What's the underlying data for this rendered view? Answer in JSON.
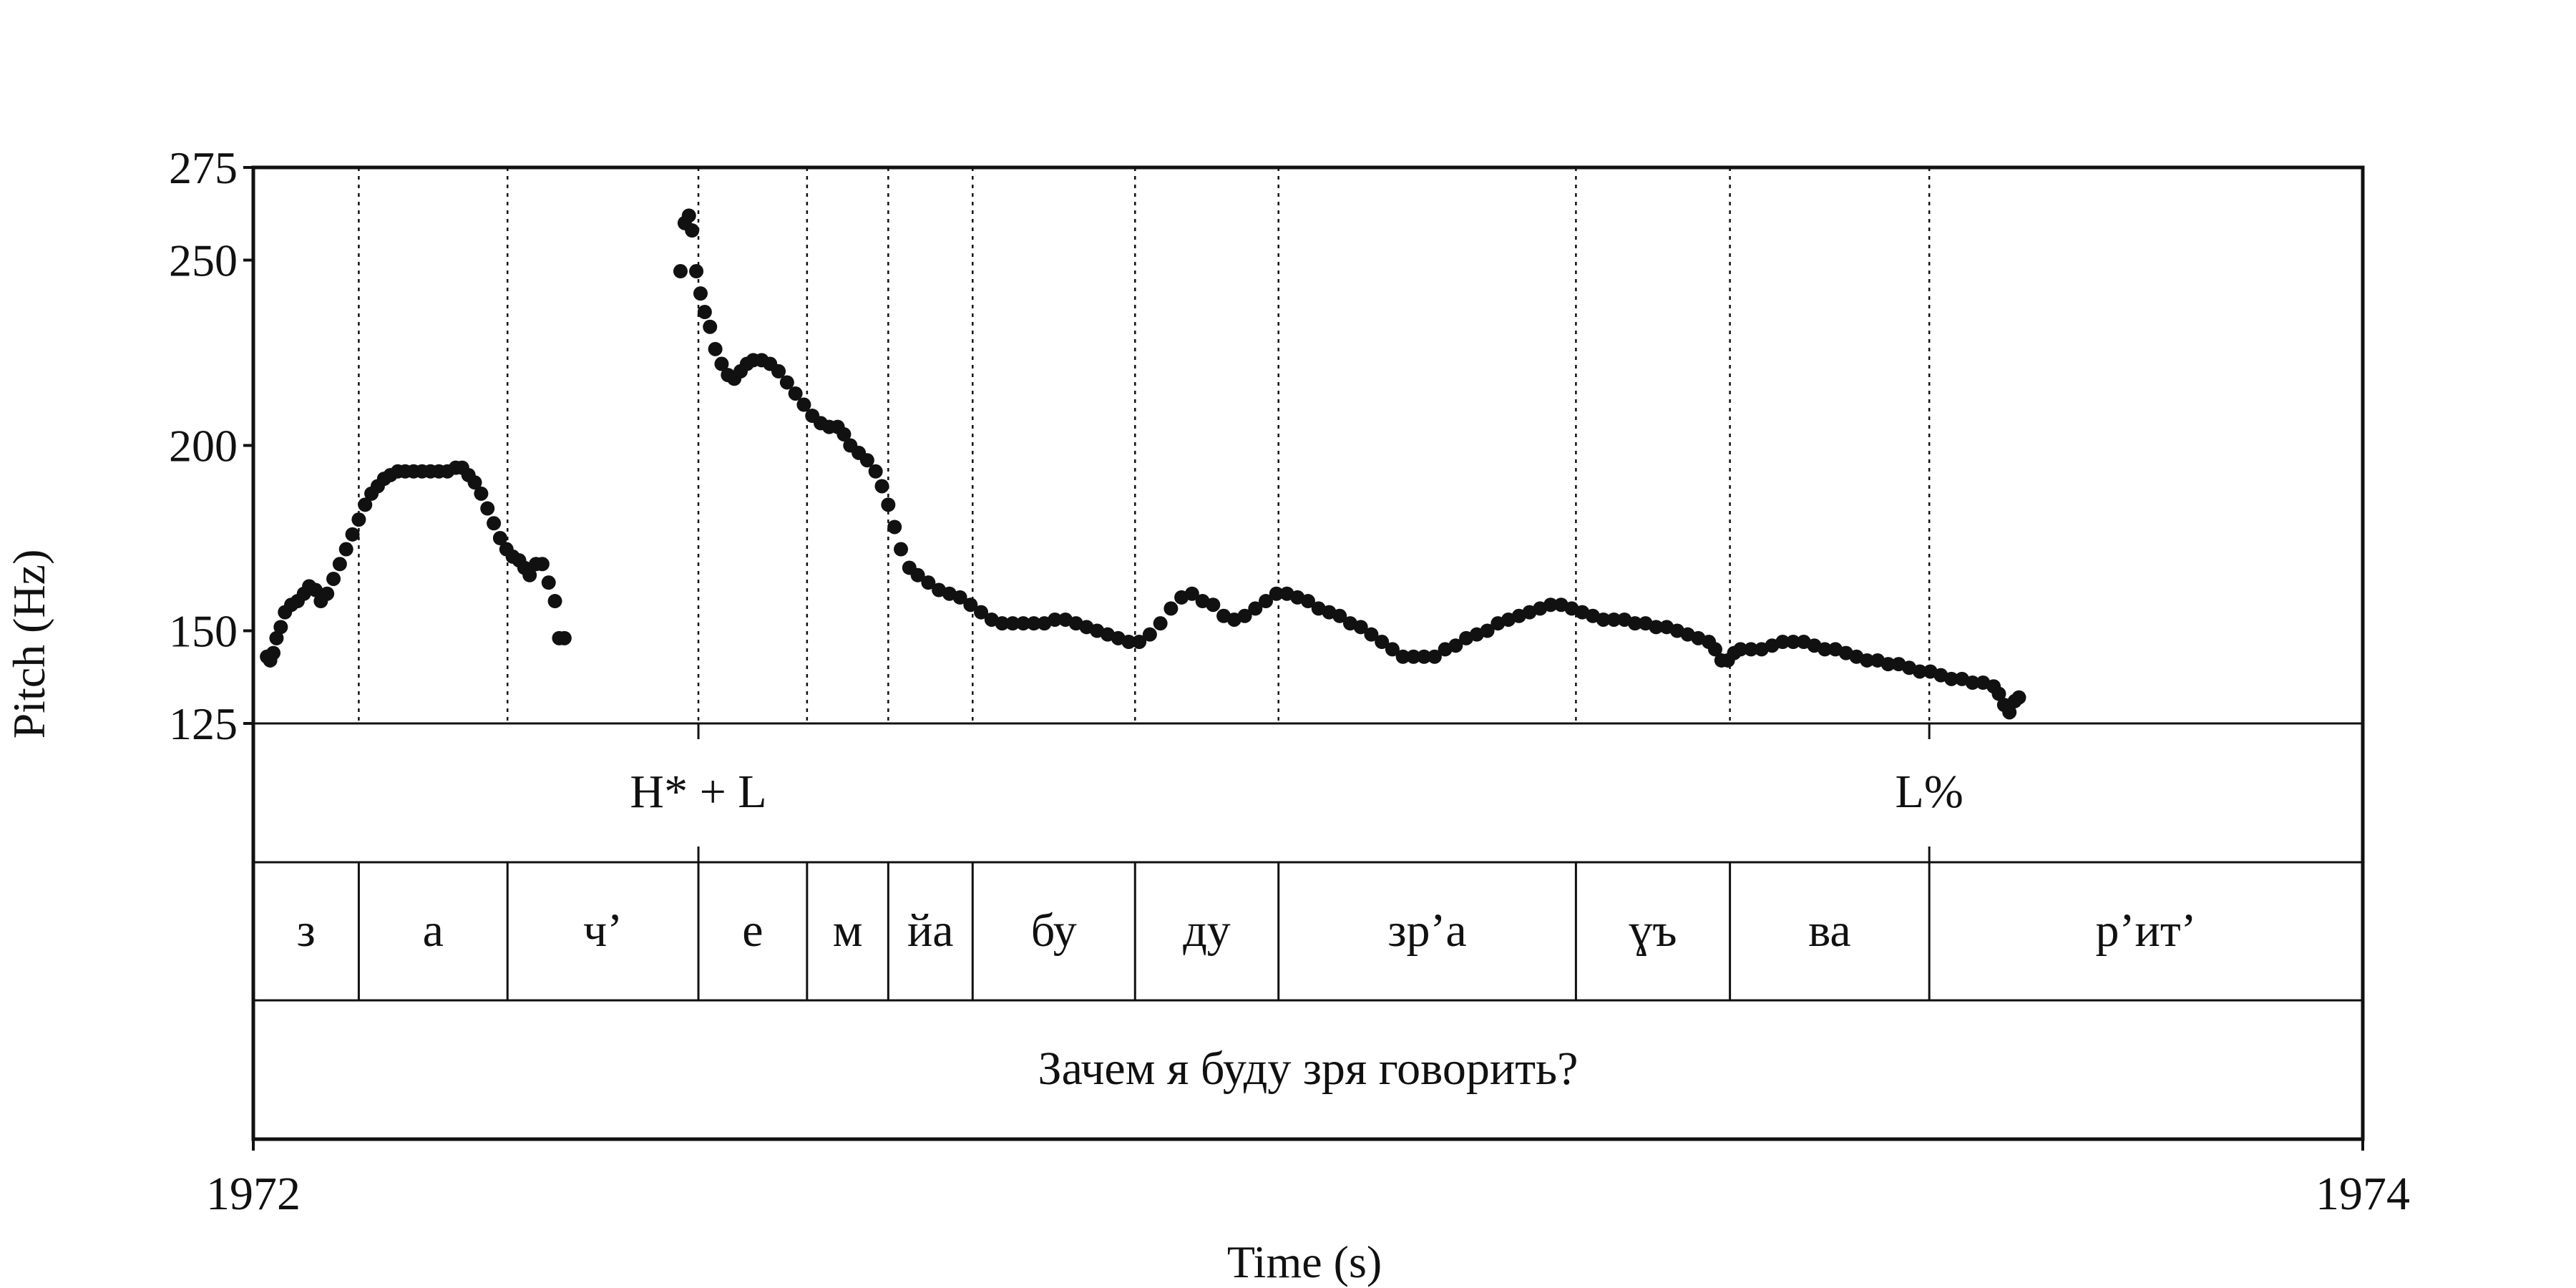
{
  "chart_data": {
    "type": "scatter",
    "title": "",
    "xlabel": "Time (s)",
    "ylabel": "Pitch (Hz)",
    "xlim": [
      1972,
      1974
    ],
    "ylim": [
      125,
      275
    ],
    "x_ticks": [
      "1972",
      "1974"
    ],
    "y_ticks": [
      125,
      150,
      200,
      250,
      275
    ],
    "tones": [
      {
        "label": "H* + L",
        "time": 1972.422
      },
      {
        "label": "L%",
        "time": 1973.589
      }
    ],
    "syllable_boundaries": [
      1972.0,
      1972.1,
      1972.241,
      1972.422,
      1972.525,
      1972.602,
      1972.682,
      1972.836,
      1972.972,
      1973.254,
      1973.4,
      1973.589,
      1974.0
    ],
    "syllables": [
      "з",
      "а",
      "ч’",
      "е",
      "м",
      "йа",
      "бу",
      "ду",
      "зр’а",
      "ɣъ",
      "ва",
      "р’ит’"
    ],
    "sentence": "Зачем я буду зря говорить?",
    "series": [
      {
        "points": [
          [
            1972.013,
            143
          ],
          [
            1972.016,
            142
          ],
          [
            1972.019,
            144
          ],
          [
            1972.022,
            148
          ],
          [
            1972.026,
            151
          ],
          [
            1972.03,
            155
          ],
          [
            1972.036,
            157
          ],
          [
            1972.042,
            158
          ],
          [
            1972.048,
            160
          ],
          [
            1972.053,
            162
          ],
          [
            1972.059,
            161
          ],
          [
            1972.064,
            158
          ],
          [
            1972.07,
            160
          ],
          [
            1972.076,
            164
          ],
          [
            1972.082,
            168
          ],
          [
            1972.088,
            172
          ],
          [
            1972.094,
            176
          ],
          [
            1972.1,
            180
          ],
          [
            1972.106,
            184
          ],
          [
            1972.112,
            187
          ],
          [
            1972.118,
            189
          ],
          [
            1972.124,
            191
          ],
          [
            1972.13,
            192
          ],
          [
            1972.137,
            193
          ],
          [
            1972.144,
            193
          ],
          [
            1972.152,
            193
          ],
          [
            1972.16,
            193
          ],
          [
            1972.168,
            193
          ],
          [
            1972.176,
            193
          ],
          [
            1972.184,
            193
          ],
          [
            1972.192,
            194
          ],
          [
            1972.198,
            194
          ],
          [
            1972.204,
            192
          ],
          [
            1972.21,
            190
          ],
          [
            1972.216,
            187
          ],
          [
            1972.222,
            183
          ],
          [
            1972.228,
            179
          ],
          [
            1972.234,
            175
          ],
          [
            1972.24,
            172
          ],
          [
            1972.246,
            170
          ],
          [
            1972.252,
            169
          ],
          [
            1972.257,
            167
          ],
          [
            1972.262,
            165
          ],
          [
            1972.268,
            168
          ],
          [
            1972.274,
            168
          ],
          [
            1972.28,
            163
          ],
          [
            1972.286,
            158
          ],
          [
            1972.29,
            148
          ],
          [
            1972.295,
            148
          ]
        ]
      },
      {
        "points": [
          [
            1972.405,
            247
          ],
          [
            1972.409,
            260
          ],
          [
            1972.413,
            262
          ],
          [
            1972.416,
            258
          ],
          [
            1972.42,
            247
          ],
          [
            1972.424,
            241
          ],
          [
            1972.428,
            236
          ],
          [
            1972.433,
            232
          ],
          [
            1972.438,
            226
          ],
          [
            1972.444,
            222
          ],
          [
            1972.45,
            219
          ],
          [
            1972.456,
            218
          ],
          [
            1972.462,
            220
          ],
          [
            1972.468,
            222
          ],
          [
            1972.474,
            223
          ],
          [
            1972.482,
            223
          ],
          [
            1972.49,
            222
          ],
          [
            1972.498,
            220
          ],
          [
            1972.506,
            217
          ],
          [
            1972.514,
            214
          ],
          [
            1972.522,
            211
          ],
          [
            1972.53,
            208
          ],
          [
            1972.538,
            206
          ],
          [
            1972.546,
            205
          ],
          [
            1972.554,
            205
          ],
          [
            1972.56,
            203
          ],
          [
            1972.566,
            200
          ],
          [
            1972.574,
            198
          ],
          [
            1972.582,
            196
          ],
          [
            1972.59,
            193
          ],
          [
            1972.596,
            189
          ],
          [
            1972.602,
            184
          ],
          [
            1972.608,
            178
          ],
          [
            1972.614,
            172
          ],
          [
            1972.622,
            167
          ],
          [
            1972.63,
            165
          ],
          [
            1972.64,
            163
          ],
          [
            1972.65,
            161
          ],
          [
            1972.66,
            160
          ],
          [
            1972.67,
            159
          ],
          [
            1972.68,
            157
          ],
          [
            1972.69,
            155
          ],
          [
            1972.7,
            153
          ],
          [
            1972.71,
            152
          ],
          [
            1972.72,
            152
          ],
          [
            1972.73,
            152
          ],
          [
            1972.74,
            152
          ],
          [
            1972.75,
            152
          ],
          [
            1972.76,
            153
          ],
          [
            1972.77,
            153
          ],
          [
            1972.78,
            152
          ],
          [
            1972.79,
            151
          ],
          [
            1972.8,
            150
          ],
          [
            1972.81,
            149
          ],
          [
            1972.82,
            148
          ],
          [
            1972.83,
            147
          ],
          [
            1972.84,
            147
          ],
          [
            1972.85,
            149
          ],
          [
            1972.86,
            152
          ],
          [
            1972.87,
            156
          ],
          [
            1972.88,
            159
          ],
          [
            1972.89,
            160
          ],
          [
            1972.9,
            158
          ],
          [
            1972.91,
            157
          ],
          [
            1972.92,
            154
          ],
          [
            1972.93,
            153
          ],
          [
            1972.94,
            154
          ],
          [
            1972.95,
            156
          ],
          [
            1972.96,
            158
          ],
          [
            1972.97,
            160
          ],
          [
            1972.98,
            160
          ],
          [
            1972.99,
            159
          ],
          [
            1973.0,
            158
          ],
          [
            1973.01,
            156
          ],
          [
            1973.02,
            155
          ],
          [
            1973.03,
            154
          ],
          [
            1973.04,
            152
          ],
          [
            1973.05,
            151
          ],
          [
            1973.06,
            149
          ],
          [
            1973.07,
            147
          ],
          [
            1973.08,
            145
          ],
          [
            1973.09,
            143
          ],
          [
            1973.1,
            143
          ],
          [
            1973.11,
            143
          ],
          [
            1973.12,
            143
          ],
          [
            1973.13,
            145
          ],
          [
            1973.14,
            146
          ],
          [
            1973.15,
            148
          ],
          [
            1973.16,
            149
          ],
          [
            1973.17,
            150
          ],
          [
            1973.18,
            152
          ],
          [
            1973.19,
            153
          ],
          [
            1973.2,
            154
          ],
          [
            1973.21,
            155
          ],
          [
            1973.22,
            156
          ],
          [
            1973.23,
            157
          ],
          [
            1973.24,
            157
          ],
          [
            1973.25,
            156
          ],
          [
            1973.26,
            155
          ],
          [
            1973.27,
            154
          ],
          [
            1973.28,
            153
          ],
          [
            1973.29,
            153
          ],
          [
            1973.3,
            153
          ],
          [
            1973.31,
            152
          ],
          [
            1973.32,
            152
          ],
          [
            1973.33,
            151
          ],
          [
            1973.34,
            151
          ],
          [
            1973.35,
            150
          ],
          [
            1973.36,
            149
          ],
          [
            1973.37,
            148
          ],
          [
            1973.38,
            147
          ],
          [
            1973.386,
            145
          ],
          [
            1973.392,
            142
          ],
          [
            1973.398,
            142
          ],
          [
            1973.404,
            144
          ],
          [
            1973.41,
            145
          ],
          [
            1973.42,
            145
          ],
          [
            1973.43,
            145
          ],
          [
            1973.44,
            146
          ],
          [
            1973.45,
            147
          ],
          [
            1973.46,
            147
          ],
          [
            1973.47,
            147
          ],
          [
            1973.48,
            146
          ],
          [
            1973.49,
            145
          ],
          [
            1973.5,
            145
          ],
          [
            1973.51,
            144
          ],
          [
            1973.52,
            143
          ],
          [
            1973.53,
            142
          ],
          [
            1973.54,
            142
          ],
          [
            1973.55,
            141
          ],
          [
            1973.56,
            141
          ],
          [
            1973.57,
            140
          ],
          [
            1973.58,
            139
          ],
          [
            1973.59,
            139
          ],
          [
            1973.6,
            138
          ],
          [
            1973.61,
            137
          ],
          [
            1973.62,
            137
          ],
          [
            1973.63,
            136
          ],
          [
            1973.64,
            136
          ],
          [
            1973.65,
            135
          ],
          [
            1973.655,
            133
          ],
          [
            1973.66,
            130
          ],
          [
            1973.665,
            128
          ],
          [
            1973.67,
            131
          ],
          [
            1973.674,
            132
          ]
        ]
      }
    ]
  }
}
